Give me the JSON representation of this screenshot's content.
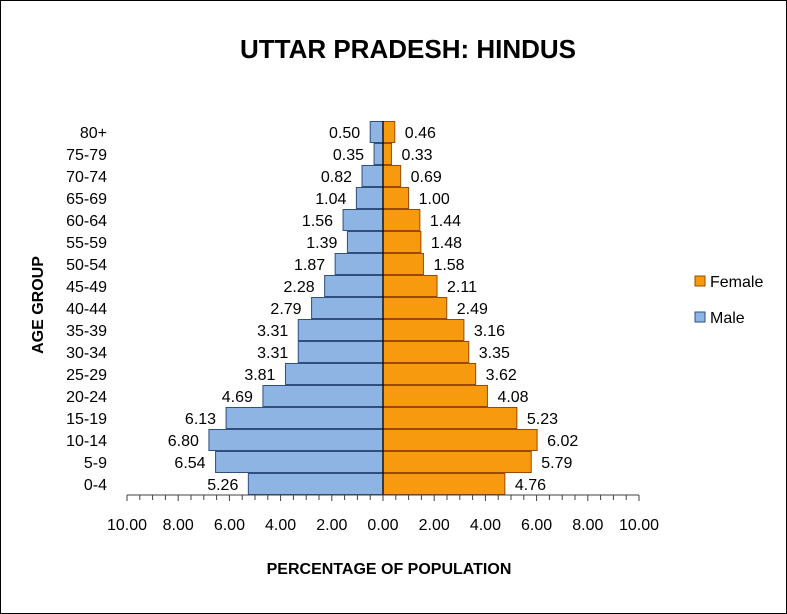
{
  "chart_data": {
    "type": "bar",
    "orientation": "horizontal",
    "layout_style": "population-pyramid",
    "title": "UTTAR PRADESH: HINDUS",
    "xlabel": "PERCENTAGE OF POPULATION",
    "ylabel": "AGE GROUP",
    "xlim": [
      -10,
      10
    ],
    "x_tick_labels": [
      "10.00",
      "8.00",
      "6.00",
      "4.00",
      "2.00",
      "0.00",
      "2.00",
      "4.00",
      "6.00",
      "8.00",
      "10.00"
    ],
    "grid": false,
    "legend_position": "right",
    "categories": [
      "0-4",
      "5-9",
      "10-14",
      "15-19",
      "20-24",
      "25-29",
      "30-34",
      "35-39",
      "40-44",
      "45-49",
      "50-54",
      "55-59",
      "60-64",
      "65-69",
      "70-74",
      "75-79",
      "80+"
    ],
    "series": [
      {
        "name": "Male",
        "side": "left",
        "color": "#8DB4E2",
        "border_color": "#2F4F7F",
        "values": [
          5.26,
          6.54,
          6.8,
          6.13,
          4.69,
          3.81,
          3.31,
          3.31,
          2.79,
          2.28,
          1.87,
          1.39,
          1.56,
          1.04,
          0.82,
          0.35,
          0.5
        ],
        "labels": [
          "5.26",
          "6.54",
          "6.80",
          "6.13",
          "4.69",
          "3.81",
          "3.31",
          "3.31",
          "2.79",
          "2.28",
          "1.87",
          "1.39",
          "1.56",
          "1.04",
          "0.82",
          "0.35",
          "0.50"
        ]
      },
      {
        "name": "Female",
        "side": "right",
        "color": "#F79A0E",
        "border_color": "#9A4A00",
        "values": [
          4.76,
          5.79,
          6.02,
          5.23,
          4.08,
          3.62,
          3.35,
          3.16,
          2.49,
          2.11,
          1.58,
          1.48,
          1.44,
          1.0,
          0.69,
          0.33,
          0.46
        ],
        "labels": [
          "4.76",
          "5.79",
          "6.02",
          "5.23",
          "4.08",
          "3.62",
          "3.35",
          "3.16",
          "2.49",
          "2.11",
          "1.58",
          "1.48",
          "1.44",
          "1.00",
          "0.69",
          "0.33",
          "0.46"
        ]
      }
    ],
    "legend": [
      "Female",
      "Male"
    ]
  }
}
